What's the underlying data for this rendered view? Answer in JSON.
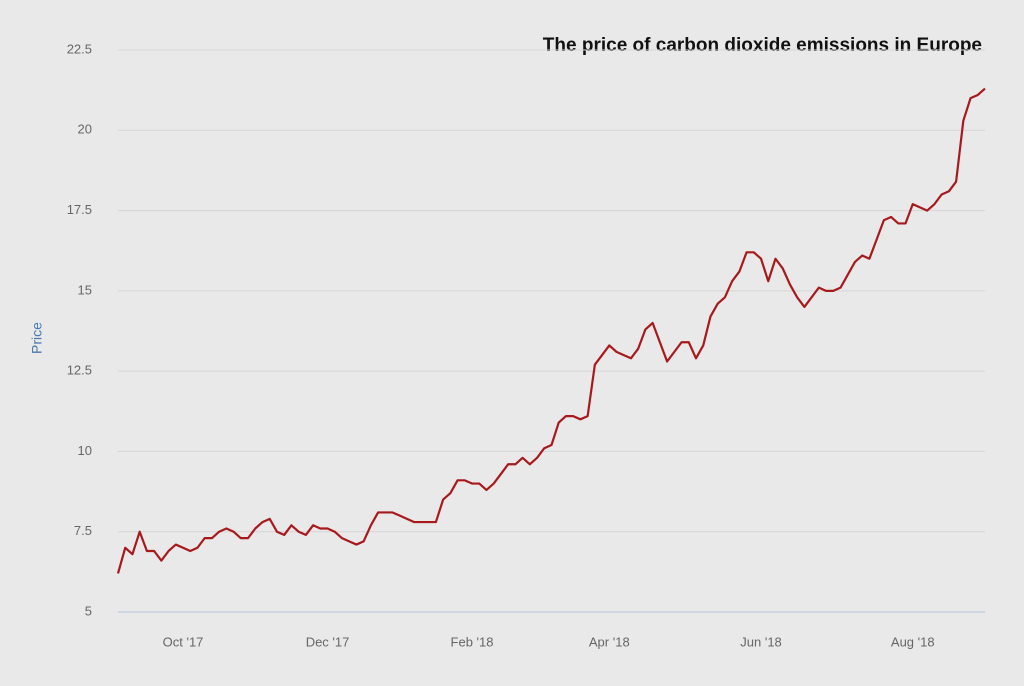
{
  "chart_data": {
    "type": "line",
    "title": "The price of carbon dioxide emissions in Europe",
    "y_label": "Price",
    "color": "#a8191c",
    "categories": [
      null,
      null,
      null,
      null,
      null,
      null,
      null,
      null,
      null,
      "Oct '17",
      null,
      null,
      null,
      null,
      null,
      null,
      null,
      null,
      null,
      null,
      null,
      null,
      null,
      null,
      null,
      null,
      null,
      null,
      null,
      "Dec '17",
      null,
      null,
      null,
      null,
      null,
      null,
      null,
      null,
      null,
      null,
      null,
      null,
      null,
      null,
      null,
      null,
      null,
      null,
      null,
      "Feb '18",
      null,
      null,
      null,
      null,
      null,
      null,
      null,
      null,
      null,
      null,
      null,
      null,
      null,
      null,
      null,
      null,
      null,
      null,
      "Apr '18",
      null,
      null,
      null,
      null,
      null,
      null,
      null,
      null,
      null,
      null,
      null,
      null,
      null,
      null,
      null,
      null,
      null,
      null,
      null,
      null,
      "Jun '18",
      null,
      null,
      null,
      null,
      null,
      null,
      null,
      null,
      null,
      null,
      null,
      null,
      null,
      null,
      null,
      null,
      null,
      null,
      null,
      null,
      "Aug '18",
      null,
      null,
      null,
      null,
      null,
      null,
      null,
      null,
      null,
      null
    ],
    "values": [
      6.2,
      7.0,
      6.8,
      7.5,
      6.9,
      6.9,
      6.6,
      6.9,
      7.1,
      7.0,
      6.9,
      7.0,
      7.3,
      7.3,
      7.5,
      7.6,
      7.5,
      7.3,
      7.3,
      7.6,
      7.8,
      7.9,
      7.5,
      7.4,
      7.7,
      7.5,
      7.4,
      7.7,
      7.6,
      7.6,
      7.5,
      7.3,
      7.2,
      7.1,
      7.2,
      7.7,
      8.1,
      8.1,
      8.1,
      8.0,
      7.9,
      7.8,
      7.8,
      7.8,
      7.8,
      8.5,
      8.7,
      9.1,
      9.1,
      9.0,
      9.0,
      8.8,
      9.0,
      9.3,
      9.6,
      9.6,
      9.8,
      9.6,
      9.8,
      10.1,
      10.2,
      10.9,
      11.1,
      11.1,
      11.0,
      11.1,
      12.7,
      13.0,
      13.3,
      13.1,
      13.0,
      12.9,
      13.2,
      13.8,
      14.0,
      13.4,
      12.8,
      13.1,
      13.4,
      13.4,
      12.9,
      13.3,
      14.2,
      14.6,
      14.8,
      15.3,
      15.6,
      16.2,
      16.2,
      16.0,
      15.3,
      16.0,
      15.7,
      15.2,
      14.8,
      14.5,
      14.8,
      15.1,
      15.0,
      15.0,
      15.1,
      15.5,
      15.9,
      16.1,
      16.0,
      16.6,
      17.2,
      17.3,
      17.1,
      17.1,
      17.7,
      17.6,
      17.5,
      17.7,
      18.0,
      18.1,
      18.4,
      20.3,
      21.0,
      21.1,
      21.3
    ],
    "ylim": [
      5,
      22.5
    ],
    "yticks": [
      5,
      7.5,
      10,
      12.5,
      15,
      17.5,
      20,
      22.5
    ],
    "grid": true
  }
}
